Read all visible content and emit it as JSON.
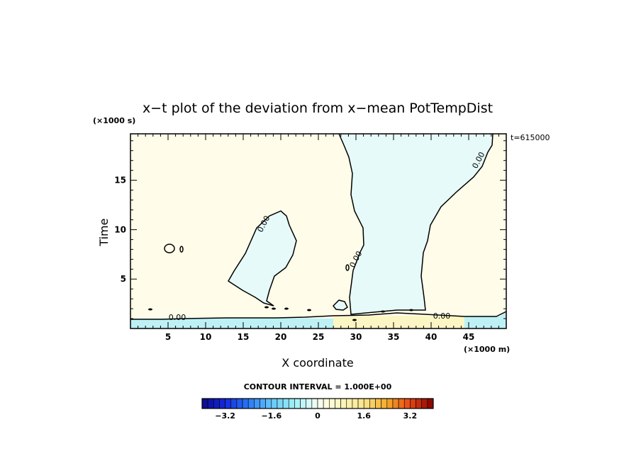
{
  "chart_data": {
    "type": "heatmap",
    "title": "x−t plot of the deviation from x−mean PotTempDist",
    "xlabel": "X coordinate",
    "ylabel": "Time",
    "x_unit": "(×1000 m)",
    "y_unit": "(×1000 s)",
    "time_stamp": "t=615000",
    "xlim": [
      0,
      50
    ],
    "ylim": [
      0,
      19.7
    ],
    "xticks": [
      5,
      10,
      15,
      20,
      25,
      30,
      35,
      40,
      45
    ],
    "yticks": [
      5,
      10,
      15
    ],
    "xtick_labels": [
      "5",
      "10",
      "15",
      "20",
      "25",
      "30",
      "35",
      "40",
      "45"
    ],
    "ytick_labels": [
      "5",
      "10",
      "15"
    ],
    "contour_label": "0.00",
    "contour_interval_text": "CONTOUR INTERVAL = 1.000E+00",
    "colorbar": {
      "min": -4,
      "max": 4,
      "step": 0.2,
      "tick_values": [
        -3.2,
        -1.6,
        0,
        1.6,
        3.2
      ],
      "tick_labels": [
        "−3.2",
        "−1.6",
        "0",
        "1.6",
        "3.2"
      ]
    },
    "regions": [
      {
        "sign": "negative",
        "fill": "#e6fafa",
        "description": "cool region right of x≈28 from t≈2 to top"
      },
      {
        "sign": "negative",
        "fill": "#e6fafa",
        "description": "cool blob x≈13–20, t≈2.5–12"
      },
      {
        "sign": "negative",
        "fill": "#bdf1f5",
        "description": "cool band near t≈0.5 at x<25 and x>45"
      },
      {
        "sign": "positive",
        "fill": "#fcf6c4",
        "description": "warm band near t≈0.5 at x≈25–45"
      },
      {
        "sign": "positive",
        "fill": "#fffcea",
        "description": "weak warm background elsewhere"
      }
    ]
  }
}
